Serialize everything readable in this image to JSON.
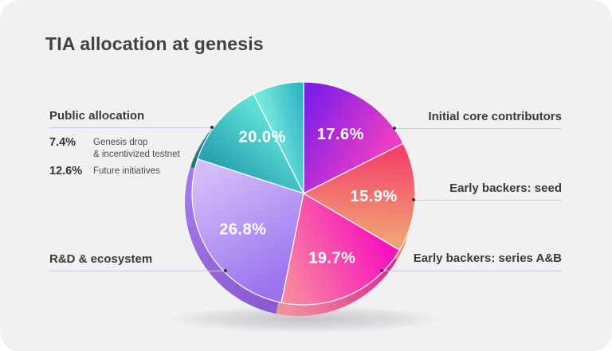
{
  "title": "TIA allocation at genesis",
  "palette": {
    "card_bg": "#f2f1f2",
    "title_color": "#414045",
    "label_color": "#3a393c",
    "connector_line": "#cfc5e3",
    "connector_dot": "#343338",
    "pct_text_on_pie": "#ffffff"
  },
  "callouts": {
    "public_allocation": {
      "label": "Public allocation",
      "items": [
        {
          "pct": "7.4%",
          "line1": "Genesis drop",
          "line2": "& incentivized testnet"
        },
        {
          "pct": "12.6%",
          "line1": "Future initiatives",
          "line2": ""
        }
      ]
    },
    "rd_ecosystem": {
      "label": "R&D & ecosystem"
    },
    "initial_core": {
      "label": "Initial core contributors"
    },
    "backers_seed": {
      "label": "Early backers: seed"
    },
    "backers_series": {
      "label": "Early backers: series A&B"
    }
  },
  "chart_data": {
    "type": "pie",
    "title": "TIA allocation at genesis",
    "start_angle_deg": 0,
    "direction": "clockwise",
    "slices": [
      {
        "name": "initial-core-contributors",
        "label": "Initial core contributors",
        "value": 17.6,
        "pct_label": "17.6%",
        "c1": "#7d1ee8",
        "c2": "#ec3cc6",
        "r1": "#8f25c8",
        "r2": "#c436b0"
      },
      {
        "name": "early-backers-seed",
        "label": "Early backers: seed",
        "value": 15.9,
        "pct_label": "15.9%",
        "c1": "#f4436b",
        "c2": "#f0a173",
        "r1": "#d65f54",
        "r2": "#e0885f"
      },
      {
        "name": "early-backers-series-ab",
        "label": "Early backers: series A&B",
        "value": 19.7,
        "pct_label": "19.7%",
        "c1": "#f716bd",
        "c2": "#f9859f",
        "r1": "#e02b92",
        "r2": "#f08f9e"
      },
      {
        "name": "rd-ecosystem",
        "label": "R&D & ecosystem",
        "value": 26.8,
        "pct_label": "26.8%",
        "c1": "#9a74ee",
        "c2": "#d3bcf9",
        "r1": "#8c5bd2",
        "r2": "#a379ea"
      },
      {
        "name": "public-future-initiatives",
        "label": "Public allocation: future initiatives",
        "value": 12.6,
        "pct_label": null,
        "c1": "#2aa2b2",
        "c2": "#5fe0d6",
        "r1": "#1f7a6e",
        "r2": "#2b98a8"
      },
      {
        "name": "public-genesis-drop",
        "label": "Public allocation: genesis drop & incentivized testnet",
        "value": 7.4,
        "pct_label": null,
        "c1": "#79e8e0",
        "c2": "#2fb6c4",
        "r1": "#2f9fae",
        "r2": "#35aab6"
      }
    ],
    "group_label": {
      "text": "20.0%",
      "covers": [
        "public-future-initiatives",
        "public-genesis-drop"
      ]
    }
  }
}
